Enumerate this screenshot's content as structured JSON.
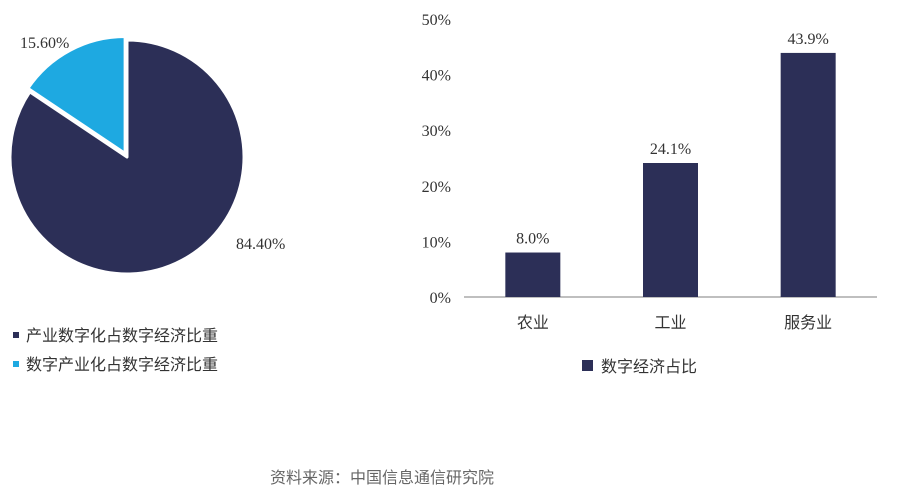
{
  "colors": {
    "navy": "#2c2f57",
    "cyan": "#1ea9e1",
    "axis": "#7f7f7f",
    "text": "#333333"
  },
  "chart_data": [
    {
      "type": "pie",
      "slices": [
        {
          "name": "产业数字化占数字经济比重",
          "value": 84.4,
          "label": "84.40%",
          "color": "#2c2f57"
        },
        {
          "name": "数字产业化占数字经济比重",
          "value": 15.6,
          "label": "15.60%",
          "color": "#1ea9e1"
        }
      ],
      "legend": [
        "产业数字化占数字经济比重",
        "数字产业化占数字经济比重"
      ],
      "legend_position": "bottom-left"
    },
    {
      "type": "bar",
      "categories": [
        "农业",
        "工业",
        "服务业"
      ],
      "series": [
        {
          "name": "数字经济占比",
          "values": [
            8.0,
            24.1,
            43.9
          ],
          "labels": [
            "8.0%",
            "24.1%",
            "43.9%"
          ],
          "color": "#2c2f57"
        }
      ],
      "ylim": [
        0,
        50
      ],
      "yticks": [
        "0%",
        "10%",
        "20%",
        "30%",
        "40%",
        "50%"
      ],
      "grid": false,
      "legend_position": "bottom"
    }
  ],
  "source": "资料来源：中国信息通信研究院"
}
